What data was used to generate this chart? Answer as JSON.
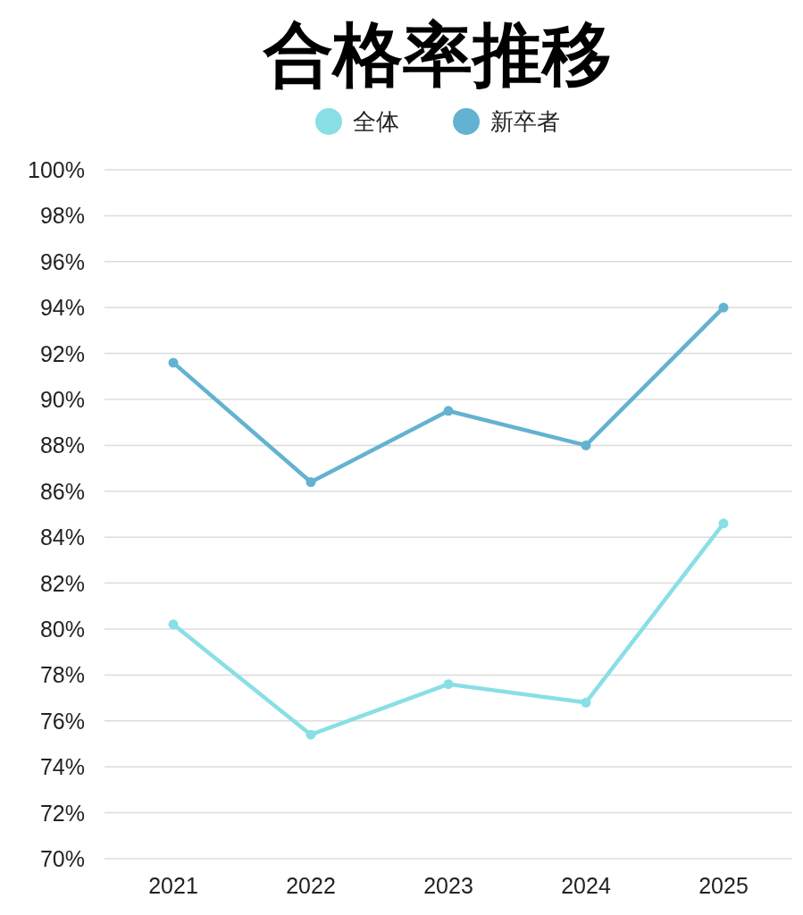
{
  "chart_data": {
    "type": "line",
    "title": "合格率推移",
    "categories": [
      "2021",
      "2022",
      "2023",
      "2024",
      "2025"
    ],
    "series": [
      {
        "name": "全体",
        "color": "#88dfe5",
        "values": [
          80.2,
          75.4,
          77.6,
          76.8,
          84.6
        ]
      },
      {
        "name": "新卒者",
        "color": "#63b2d1",
        "values": [
          91.6,
          86.4,
          89.5,
          88.0,
          94.0
        ]
      }
    ],
    "ylim": [
      70,
      100
    ],
    "yticks": [
      {
        "value": 70,
        "label": "70%"
      },
      {
        "value": 72,
        "label": "72%"
      },
      {
        "value": 74,
        "label": "74%"
      },
      {
        "value": 76,
        "label": "76%"
      },
      {
        "value": 78,
        "label": "78%"
      },
      {
        "value": 80,
        "label": "80%"
      },
      {
        "value": 82,
        "label": "82%"
      },
      {
        "value": 84,
        "label": "84%"
      },
      {
        "value": 86,
        "label": "86%"
      },
      {
        "value": 88,
        "label": "88%"
      },
      {
        "value": 90,
        "label": "90%"
      },
      {
        "value": 92,
        "label": "92%"
      },
      {
        "value": 94,
        "label": "94%"
      },
      {
        "value": 96,
        "label": "96%"
      },
      {
        "value": 98,
        "label": "98%"
      },
      {
        "value": 100,
        "label": "100%"
      }
    ],
    "grid": "y",
    "legend": "top",
    "marker": "circle",
    "line_style": "solid"
  }
}
